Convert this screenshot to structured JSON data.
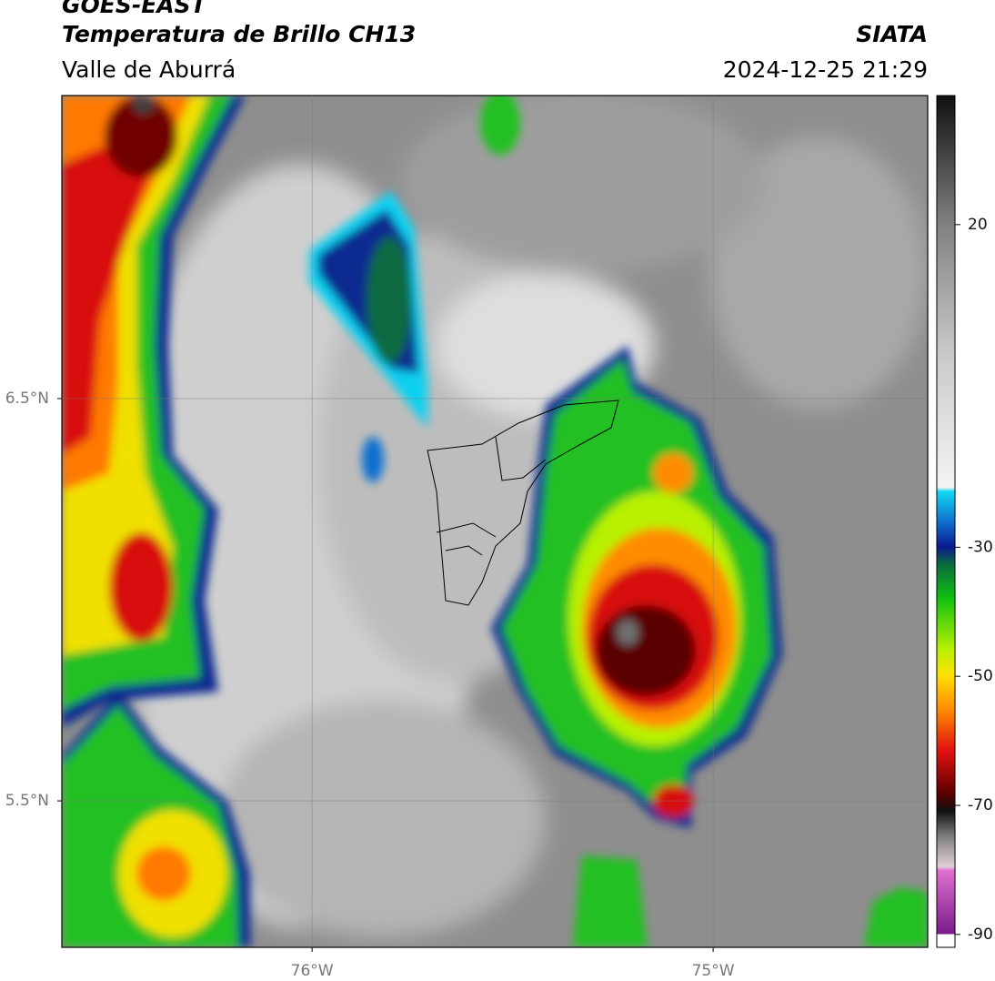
{
  "header": {
    "title": "GOES-EAST",
    "subtitle": "Temperatura de Brillo CH13",
    "region": "Valle de Aburrá",
    "source": "SIATA",
    "datetime": "2024-12-25 21:29"
  },
  "map": {
    "latlim": [
      5.136,
      7.253
    ],
    "lonlim": [
      -76.624,
      -74.465
    ],
    "lat_ticks": [
      {
        "value": 6.5,
        "label": "6.5°N"
      },
      {
        "value": 5.5,
        "label": "5.5°N"
      }
    ],
    "lon_ticks": [
      {
        "value": -76,
        "label": "76°W"
      },
      {
        "value": -75,
        "label": "75°W"
      }
    ],
    "grid": true
  },
  "colorbar": {
    "lim": [
      -92,
      40
    ],
    "ticks": [
      20,
      -30,
      -50,
      -70,
      -90
    ]
  }
}
